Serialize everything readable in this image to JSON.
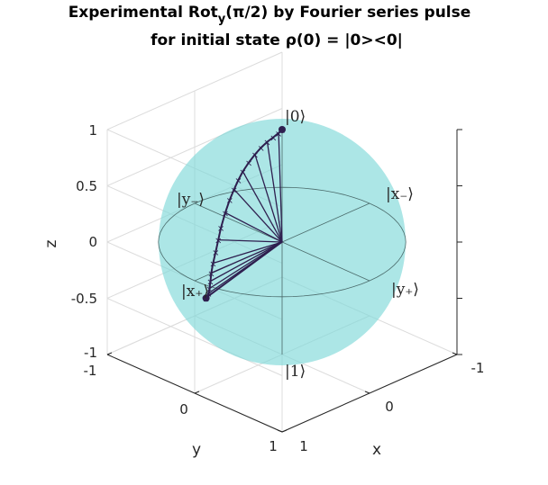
{
  "chart_data": {
    "type": "line",
    "title_line1_a": "Experimental Rot",
    "title_line1_sub": "y",
    "title_line1_b": "(π/2) by Fourier series pulse",
    "title_line2": "for initial state ρ(0) = |0><0|",
    "xlabel": "x",
    "ylabel": "y",
    "zlabel": "z",
    "xlim": [
      -1,
      1
    ],
    "ylim": [
      -1,
      1
    ],
    "zlim": [
      -1,
      1
    ],
    "x_ticks": [
      "-1",
      "0",
      "1"
    ],
    "y_ticks": [
      "-1",
      "0",
      "1"
    ],
    "z_ticks": [
      "1",
      "0.5",
      "0",
      "-0.5",
      "-1"
    ],
    "grid": true,
    "state_labels": {
      "zero": "|0⟩",
      "one": "|1⟩",
      "x_minus": "|x₋⟩",
      "x_plus": "|x₊⟩",
      "y_minus": "|y₋⟩",
      "y_plus": "|y₊⟩"
    },
    "series": [
      {
        "x": [
          0.0,
          0.05,
          0.12,
          0.2,
          0.28,
          0.36,
          0.44,
          0.52,
          0.58,
          0.64,
          0.7,
          0.76,
          0.82,
          0.86,
          0.9,
          0.93,
          0.95,
          0.96,
          0.97,
          0.98,
          0.99,
          1.0
        ],
        "y": [
          0.0,
          -0.01,
          -0.02,
          -0.03,
          -0.04,
          -0.05,
          -0.06,
          -0.07,
          -0.08,
          -0.09,
          -0.1,
          -0.11,
          -0.12,
          -0.13,
          -0.14,
          -0.14,
          -0.14,
          -0.14,
          -0.14,
          -0.14,
          -0.13,
          -0.13
        ],
        "z": [
          1.0,
          0.99,
          0.98,
          0.97,
          0.95,
          0.92,
          0.88,
          0.83,
          0.78,
          0.72,
          0.65,
          0.56,
          0.45,
          0.36,
          0.27,
          0.18,
          0.1,
          0.03,
          -0.03,
          -0.07,
          -0.1,
          -0.11
        ]
      }
    ],
    "colors": {
      "sphere": "#7fd8d8",
      "trajectory": "#2e1f4f",
      "grid": "#dcdcdc",
      "axes": "#262626"
    }
  }
}
